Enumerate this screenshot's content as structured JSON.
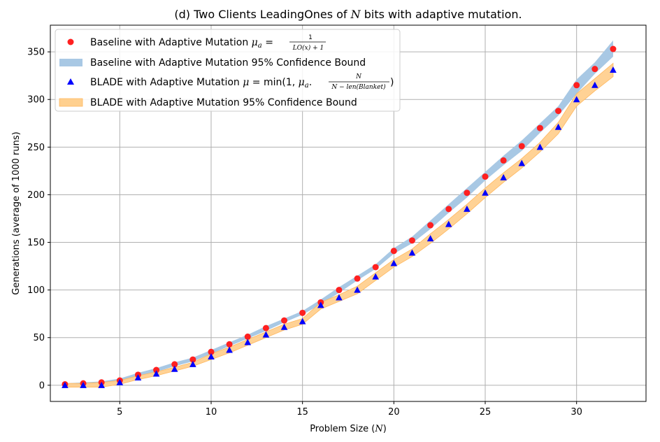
{
  "chart_data": {
    "type": "scatter",
    "title_prefix": "(d) Two Clients LeadingOnes of ",
    "title_var": "N",
    "title_suffix": " bits with adaptive mutation.",
    "xlabel_prefix": "Problem Size (",
    "xlabel_var": "N",
    "xlabel_suffix": ")",
    "ylabel": "Generations (average of 1000 runs)",
    "xlim": [
      1.2,
      33.8
    ],
    "ylim": [
      -17,
      378
    ],
    "xticks": [
      5,
      10,
      15,
      20,
      25,
      30
    ],
    "yticks": [
      0,
      50,
      100,
      150,
      200,
      250,
      300,
      350
    ],
    "grid": true,
    "legend_position": "top-left",
    "x": [
      2,
      3,
      4,
      5,
      6,
      7,
      8,
      9,
      10,
      11,
      12,
      13,
      14,
      15,
      16,
      17,
      18,
      19,
      20,
      21,
      22,
      23,
      24,
      25,
      26,
      27,
      28,
      29,
      30,
      31,
      32
    ],
    "series": [
      {
        "name_text": "Baseline with Adaptive Mutation ",
        "name_formula": "μa = 1 / (LO(x)+1)",
        "kind": "points",
        "marker": "circle",
        "color": "#ff2020",
        "values": [
          1,
          2,
          3,
          5,
          11,
          16,
          22,
          27,
          35,
          43,
          51,
          60,
          68,
          76,
          87,
          100,
          112,
          124,
          141,
          152,
          168,
          185,
          202,
          219,
          236,
          251,
          270,
          288,
          315,
          332,
          353
        ]
      },
      {
        "name_text": "Baseline with Adaptive Mutation 95% Confidence Bound",
        "kind": "band",
        "color": "#a8c8e4",
        "lower": [
          0,
          0,
          2,
          3,
          9,
          14,
          20,
          25,
          33,
          41,
          49,
          57,
          66,
          74,
          85,
          97,
          110,
          122,
          138,
          149,
          164,
          181,
          197,
          215,
          231,
          246,
          265,
          283,
          306,
          327,
          345
        ],
        "upper": [
          2,
          3,
          4,
          7,
          13,
          18,
          24,
          29,
          37,
          45,
          53,
          62,
          70,
          78,
          90,
          103,
          115,
          127,
          144,
          156,
          173,
          190,
          207,
          224,
          241,
          257,
          275,
          293,
          321,
          339,
          362
        ]
      },
      {
        "name_text": "BLADE with Adaptive Mutation ",
        "name_formula": "μ = min(1, μa · N / (N − len(Blanket)))",
        "kind": "points",
        "marker": "triangle",
        "color": "#0000ff",
        "values": [
          0,
          0,
          0,
          3,
          8,
          12,
          17,
          22,
          30,
          37,
          45,
          53,
          61,
          67,
          84,
          92,
          100,
          114,
          128,
          139,
          154,
          169,
          185,
          202,
          218,
          233,
          250,
          271,
          300,
          315,
          331
        ]
      },
      {
        "name_text": "BLADE with Adaptive Mutation 95% Confidence Bound",
        "kind": "band",
        "color": "#ffd08f",
        "lower": [
          -2,
          -2,
          -2,
          1,
          6,
          10,
          15,
          20,
          27,
          34,
          42,
          50,
          58,
          64,
          80,
          88,
          96,
          110,
          124,
          135,
          149,
          164,
          180,
          197,
          213,
          228,
          245,
          264,
          293,
          309,
          324
        ],
        "upper": [
          2,
          2,
          3,
          5,
          10,
          14,
          19,
          24,
          33,
          40,
          48,
          56,
          64,
          70,
          87,
          95,
          104,
          118,
          132,
          143,
          159,
          174,
          190,
          207,
          223,
          238,
          255,
          276,
          306,
          322,
          338
        ]
      }
    ]
  }
}
